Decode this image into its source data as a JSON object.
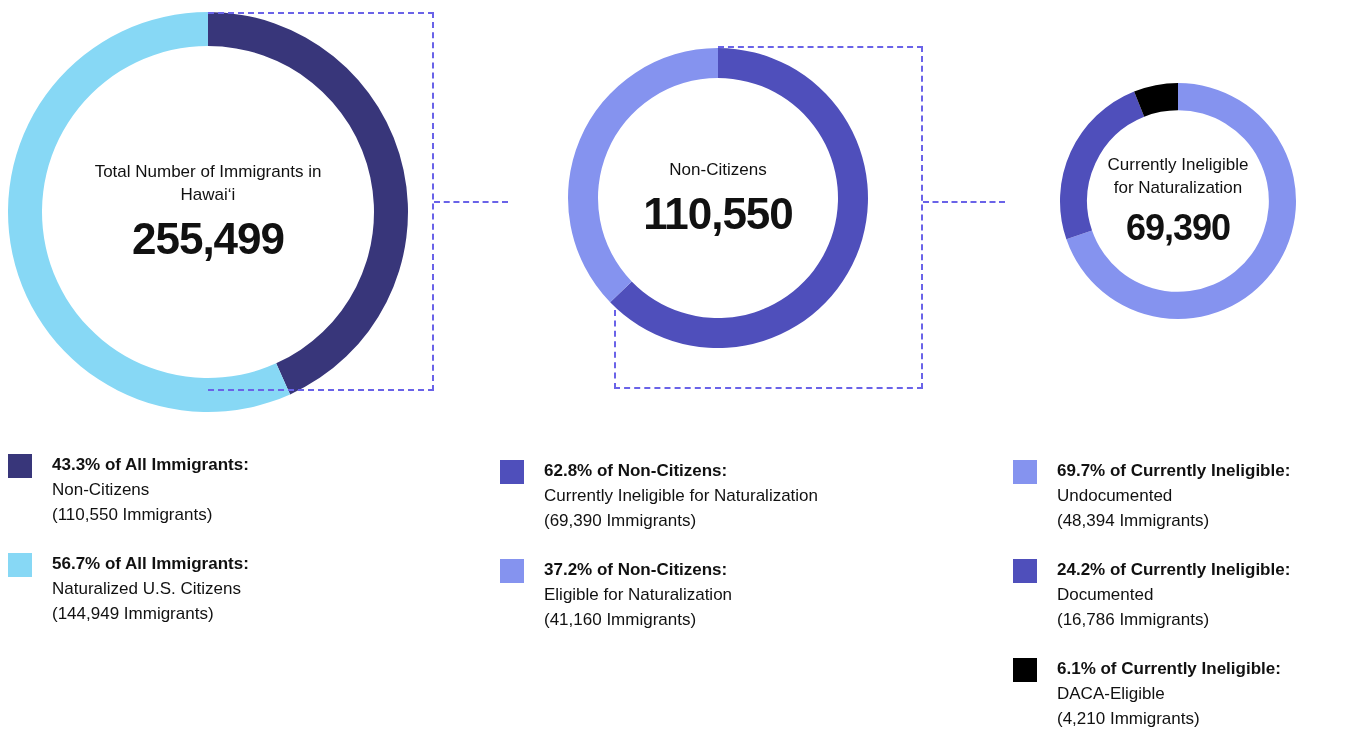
{
  "chart_data": [
    {
      "type": "donut",
      "title": "Total Number of Immigrants in Hawaiʻi",
      "subtitle": "255,499",
      "legend": "bottom",
      "categories": [
        "43.3% of All Immigrants:\nNon-Citizens\n(110,550 Immigrants)",
        "56.7% of All Immigrants:\nNaturalized U.S. Citizens\n(144,949 Immigrants)"
      ],
      "values": [
        110550,
        144949
      ],
      "colors": [
        "#38367a",
        "#87d8f5"
      ]
    },
    {
      "type": "donut",
      "title": "Non-Citizens",
      "subtitle": "110,550",
      "legend": "bottom",
      "categories": [
        "62.8% of Non-Citizens:\nCurrently Ineligible for Naturalization\n(69,390 Immigrants)",
        "37.2% of Non-Citizens:\nEligible for Naturalization\n(41,160 Immigrants)"
      ],
      "values": [
        69390,
        41160
      ],
      "colors": [
        "#4f4fbb",
        "#8593ef"
      ]
    },
    {
      "type": "donut",
      "title": "Currently Ineligible for Naturalization",
      "subtitle": "69,390",
      "legend": "bottom",
      "categories": [
        "69.7% of Currently Ineligible:\nUndocumented\n(48,394 Immigrants)",
        "24.2% of Currently Ineligible:\nDocumented\n(16,786 Immigrants)",
        "6.1% of Currently Ineligible:\nDACA-Eligible\n(4,210 Immigrants)"
      ],
      "values": [
        48394,
        16786,
        4210
      ],
      "colors": [
        "#8593ef",
        "#4f4fbb",
        "#000000"
      ]
    }
  ]
}
